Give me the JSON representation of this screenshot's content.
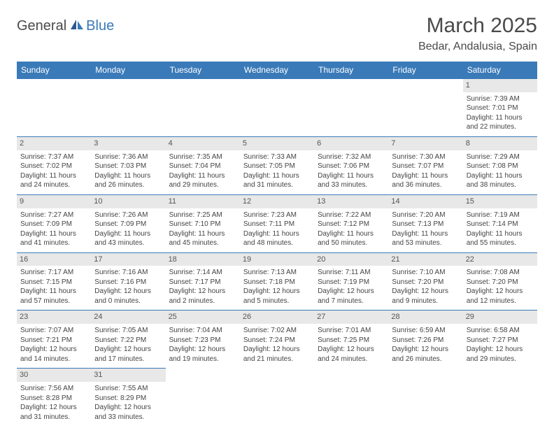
{
  "logo": {
    "part1": "General",
    "part2": "Blue"
  },
  "title": "March 2025",
  "location": "Bedar, Andalusia, Spain",
  "colors": {
    "header_bg": "#3a7ab8",
    "header_text": "#ffffff",
    "daynum_bg": "#e8e8e8",
    "border": "#3a7ab8",
    "text": "#444444",
    "logo_blue": "#3a7ab8",
    "logo_gray": "#4a4a4a"
  },
  "daynames": [
    "Sunday",
    "Monday",
    "Tuesday",
    "Wednesday",
    "Thursday",
    "Friday",
    "Saturday"
  ],
  "labels": {
    "sunrise": "Sunrise:",
    "sunset": "Sunset:",
    "daylight": "Daylight:"
  },
  "weeks": [
    [
      null,
      null,
      null,
      null,
      null,
      null,
      {
        "n": "1",
        "sunrise": "7:39 AM",
        "sunset": "7:01 PM",
        "daylight1": "11 hours",
        "daylight2": "and 22 minutes."
      }
    ],
    [
      {
        "n": "2",
        "sunrise": "7:37 AM",
        "sunset": "7:02 PM",
        "daylight1": "11 hours",
        "daylight2": "and 24 minutes."
      },
      {
        "n": "3",
        "sunrise": "7:36 AM",
        "sunset": "7:03 PM",
        "daylight1": "11 hours",
        "daylight2": "and 26 minutes."
      },
      {
        "n": "4",
        "sunrise": "7:35 AM",
        "sunset": "7:04 PM",
        "daylight1": "11 hours",
        "daylight2": "and 29 minutes."
      },
      {
        "n": "5",
        "sunrise": "7:33 AM",
        "sunset": "7:05 PM",
        "daylight1": "11 hours",
        "daylight2": "and 31 minutes."
      },
      {
        "n": "6",
        "sunrise": "7:32 AM",
        "sunset": "7:06 PM",
        "daylight1": "11 hours",
        "daylight2": "and 33 minutes."
      },
      {
        "n": "7",
        "sunrise": "7:30 AM",
        "sunset": "7:07 PM",
        "daylight1": "11 hours",
        "daylight2": "and 36 minutes."
      },
      {
        "n": "8",
        "sunrise": "7:29 AM",
        "sunset": "7:08 PM",
        "daylight1": "11 hours",
        "daylight2": "and 38 minutes."
      }
    ],
    [
      {
        "n": "9",
        "sunrise": "7:27 AM",
        "sunset": "7:09 PM",
        "daylight1": "11 hours",
        "daylight2": "and 41 minutes."
      },
      {
        "n": "10",
        "sunrise": "7:26 AM",
        "sunset": "7:09 PM",
        "daylight1": "11 hours",
        "daylight2": "and 43 minutes."
      },
      {
        "n": "11",
        "sunrise": "7:25 AM",
        "sunset": "7:10 PM",
        "daylight1": "11 hours",
        "daylight2": "and 45 minutes."
      },
      {
        "n": "12",
        "sunrise": "7:23 AM",
        "sunset": "7:11 PM",
        "daylight1": "11 hours",
        "daylight2": "and 48 minutes."
      },
      {
        "n": "13",
        "sunrise": "7:22 AM",
        "sunset": "7:12 PM",
        "daylight1": "11 hours",
        "daylight2": "and 50 minutes."
      },
      {
        "n": "14",
        "sunrise": "7:20 AM",
        "sunset": "7:13 PM",
        "daylight1": "11 hours",
        "daylight2": "and 53 minutes."
      },
      {
        "n": "15",
        "sunrise": "7:19 AM",
        "sunset": "7:14 PM",
        "daylight1": "11 hours",
        "daylight2": "and 55 minutes."
      }
    ],
    [
      {
        "n": "16",
        "sunrise": "7:17 AM",
        "sunset": "7:15 PM",
        "daylight1": "11 hours",
        "daylight2": "and 57 minutes."
      },
      {
        "n": "17",
        "sunrise": "7:16 AM",
        "sunset": "7:16 PM",
        "daylight1": "12 hours",
        "daylight2": "and 0 minutes."
      },
      {
        "n": "18",
        "sunrise": "7:14 AM",
        "sunset": "7:17 PM",
        "daylight1": "12 hours",
        "daylight2": "and 2 minutes."
      },
      {
        "n": "19",
        "sunrise": "7:13 AM",
        "sunset": "7:18 PM",
        "daylight1": "12 hours",
        "daylight2": "and 5 minutes."
      },
      {
        "n": "20",
        "sunrise": "7:11 AM",
        "sunset": "7:19 PM",
        "daylight1": "12 hours",
        "daylight2": "and 7 minutes."
      },
      {
        "n": "21",
        "sunrise": "7:10 AM",
        "sunset": "7:20 PM",
        "daylight1": "12 hours",
        "daylight2": "and 9 minutes."
      },
      {
        "n": "22",
        "sunrise": "7:08 AM",
        "sunset": "7:20 PM",
        "daylight1": "12 hours",
        "daylight2": "and 12 minutes."
      }
    ],
    [
      {
        "n": "23",
        "sunrise": "7:07 AM",
        "sunset": "7:21 PM",
        "daylight1": "12 hours",
        "daylight2": "and 14 minutes."
      },
      {
        "n": "24",
        "sunrise": "7:05 AM",
        "sunset": "7:22 PM",
        "daylight1": "12 hours",
        "daylight2": "and 17 minutes."
      },
      {
        "n": "25",
        "sunrise": "7:04 AM",
        "sunset": "7:23 PM",
        "daylight1": "12 hours",
        "daylight2": "and 19 minutes."
      },
      {
        "n": "26",
        "sunrise": "7:02 AM",
        "sunset": "7:24 PM",
        "daylight1": "12 hours",
        "daylight2": "and 21 minutes."
      },
      {
        "n": "27",
        "sunrise": "7:01 AM",
        "sunset": "7:25 PM",
        "daylight1": "12 hours",
        "daylight2": "and 24 minutes."
      },
      {
        "n": "28",
        "sunrise": "6:59 AM",
        "sunset": "7:26 PM",
        "daylight1": "12 hours",
        "daylight2": "and 26 minutes."
      },
      {
        "n": "29",
        "sunrise": "6:58 AM",
        "sunset": "7:27 PM",
        "daylight1": "12 hours",
        "daylight2": "and 29 minutes."
      }
    ],
    [
      {
        "n": "30",
        "sunrise": "7:56 AM",
        "sunset": "8:28 PM",
        "daylight1": "12 hours",
        "daylight2": "and 31 minutes."
      },
      {
        "n": "31",
        "sunrise": "7:55 AM",
        "sunset": "8:29 PM",
        "daylight1": "12 hours",
        "daylight2": "and 33 minutes."
      },
      null,
      null,
      null,
      null,
      null
    ]
  ]
}
